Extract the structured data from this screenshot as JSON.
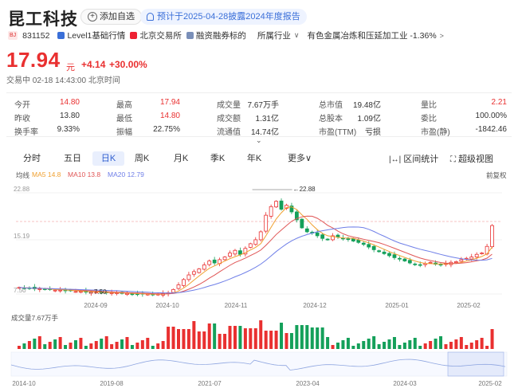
{
  "header": {
    "stock_name": "昆工科技",
    "watch_button": "添加自选",
    "notice": "预计于2025-04-28披露2024年度报告"
  },
  "subrow": {
    "exchange_tag": "BJ",
    "code": "831152",
    "level1": "Level1基础行情",
    "exchange": "北京交易所",
    "margin": "融资融券标的",
    "industry_label": "所属行业",
    "industry_value": "有色金属冶炼和压延加工业 -1.36%"
  },
  "quote": {
    "price": "17.94",
    "unit": "元",
    "change": "+4.14",
    "change_pct": "+30.00%",
    "status": "交易中 02-18 14:43:00 北京时间"
  },
  "stats": [
    [
      {
        "label": "今开",
        "value": "14.80",
        "cls": "red"
      },
      {
        "label": "最高",
        "value": "17.94",
        "cls": "red"
      },
      {
        "label": "成交量",
        "value": "7.67万手",
        "cls": ""
      },
      {
        "label": "总市值",
        "value": "19.48亿",
        "cls": ""
      },
      {
        "label": "量比",
        "value": "2.21",
        "cls": "red"
      }
    ],
    [
      {
        "label": "昨收",
        "value": "13.80",
        "cls": ""
      },
      {
        "label": "最低",
        "value": "14.80",
        "cls": "red"
      },
      {
        "label": "成交额",
        "value": "1.31亿",
        "cls": ""
      },
      {
        "label": "总股本",
        "value": "1.09亿",
        "cls": ""
      },
      {
        "label": "委比",
        "value": "100.00%",
        "cls": ""
      }
    ],
    [
      {
        "label": "换手率",
        "value": "9.33%",
        "cls": ""
      },
      {
        "label": "振幅",
        "value": "22.75%",
        "cls": ""
      },
      {
        "label": "流通值",
        "value": "14.74亿",
        "cls": ""
      },
      {
        "label": "市盈(TTM)",
        "value": "亏损",
        "cls": ""
      },
      {
        "label": "市盈(静)",
        "value": "-1842.46",
        "cls": ""
      }
    ]
  ],
  "tabs": [
    "分时",
    "五日",
    "日K",
    "周K",
    "月K",
    "季K",
    "年K",
    "更多"
  ],
  "active_tab": "日K",
  "tools": {
    "range_stats": "区间统计",
    "super_view": "超级视图"
  },
  "ma_legend": {
    "label": "均线",
    "ma5": "MA5 14.8",
    "ma10": "MA10 13.8",
    "ma20": "MA20 12.79"
  },
  "adjust": "前复权",
  "colors": {
    "up": "#e93030",
    "down": "#14a05a",
    "ma5": "#f0a030",
    "ma10": "#e05555",
    "ma20": "#6f7fe8",
    "accent": "#2f5fd0"
  },
  "chart_data": {
    "type": "candlestick",
    "ylim": [
      7.5,
      22.88
    ],
    "y_ticks": [
      "22.88",
      "15.19",
      "7.50"
    ],
    "x_ticks": [
      "2024-09",
      "2024-10",
      "2024-11",
      "2024-12",
      "2025-01",
      "2025-02"
    ],
    "high_label": "22.88",
    "low_label": "7.50",
    "close_series": [
      8.6,
      8.5,
      8.5,
      8.4,
      8.4,
      8.3,
      8.3,
      8.2,
      8.2,
      8.1,
      8.1,
      8.0,
      8.0,
      7.9,
      7.9,
      7.9,
      7.8,
      7.8,
      7.8,
      7.8,
      7.7,
      7.7,
      7.6,
      7.6,
      7.6,
      7.6,
      7.5,
      7.6,
      7.7,
      7.8,
      8.3,
      9.0,
      9.8,
      10.5,
      11.0,
      11.4,
      12.0,
      12.6,
      12.3,
      12.8,
      13.2,
      13.8,
      14.2,
      13.6,
      14.5,
      15.2,
      15.8,
      17.0,
      19.5,
      20.8,
      21.6,
      20.4,
      21.0,
      20.0,
      18.8,
      17.6,
      17.0,
      16.8,
      16.4,
      16.0,
      15.8,
      16.4,
      16.2,
      16.0,
      15.9,
      15.6,
      15.4,
      15.1,
      14.7,
      14.3,
      14.0,
      13.7,
      13.4,
      13.1,
      12.9,
      12.6,
      12.3,
      12.1,
      12.0,
      12.2,
      12.4,
      12.1,
      12.0,
      12.2,
      12.4,
      12.5,
      12.8,
      13.0,
      13.2,
      13.6,
      13.8,
      14.8,
      17.94
    ],
    "volume_label": "成交量7.67万手",
    "overview_x_ticks": [
      "2014-10",
      "2019-08",
      "2021-07",
      "2023-04",
      "2024-03",
      "2025-02"
    ]
  }
}
